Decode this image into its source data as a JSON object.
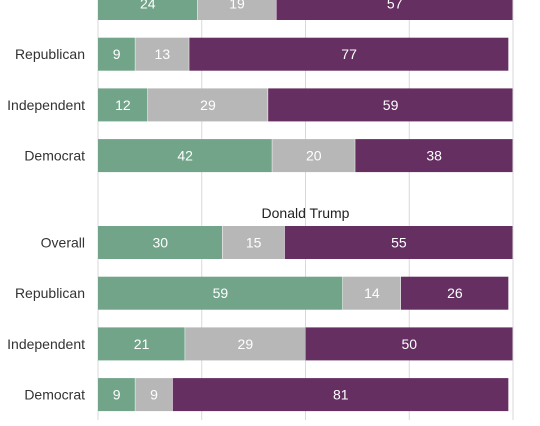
{
  "chart_data": {
    "type": "bar",
    "orientation": "horizontal",
    "stacked": true,
    "grid": true,
    "colors": {
      "green": "#71a489",
      "gray": "#b7b7b7",
      "purple": "#652f62"
    },
    "panels": [
      {
        "title": "",
        "categories": [
          "",
          "Republican",
          "Independent",
          "Democrat"
        ],
        "series": [
          {
            "color": "green",
            "values": [
              24,
              9,
              12,
              42
            ]
          },
          {
            "color": "gray",
            "values": [
              19,
              13,
              29,
              20
            ]
          },
          {
            "color": "purple",
            "values": [
              57,
              77,
              59,
              38
            ]
          }
        ]
      },
      {
        "title": "Donald Trump",
        "categories": [
          "Overall",
          "Republican",
          "Independent",
          "Democrat"
        ],
        "series": [
          {
            "color": "green",
            "values": [
              30,
              59,
              21,
              9
            ]
          },
          {
            "color": "gray",
            "values": [
              15,
              14,
              29,
              9
            ]
          },
          {
            "color": "purple",
            "values": [
              55,
              26,
              50,
              81
            ]
          }
        ]
      }
    ],
    "xlim": [
      0,
      100
    ]
  }
}
